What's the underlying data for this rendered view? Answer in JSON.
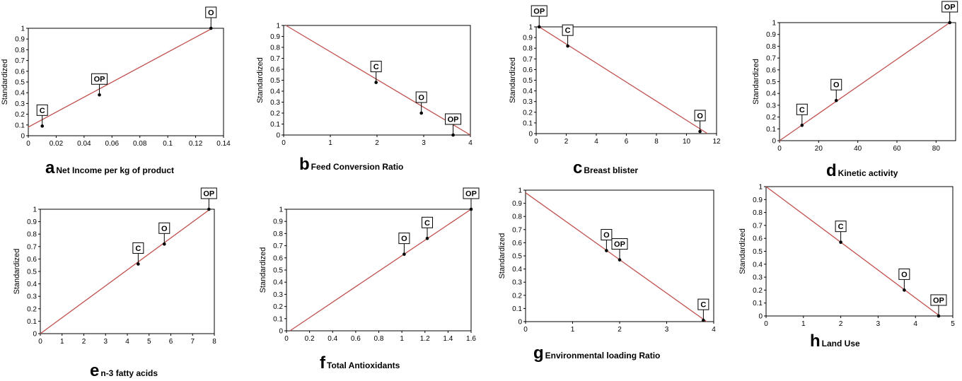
{
  "colors": {
    "line": "#c0504d",
    "frame": "#000000",
    "marker": "#000000",
    "box": "#ffffff"
  },
  "chart_data": [
    {
      "id": "a",
      "type": "line",
      "letter": "a",
      "xlabel": "Net Income per kg of product",
      "ylabel": "Standardized",
      "xlim": [
        0,
        0.14
      ],
      "ylim": [
        0,
        1
      ],
      "xticks": [
        "0",
        "0.02",
        "0.04",
        "0.06",
        "0.08",
        "0.1",
        "0.12",
        "0.14"
      ],
      "yticks": [
        "0",
        "0.1",
        "0.2",
        "0.3",
        "0.4",
        "0.5",
        "0.6",
        "0.7",
        "0.8",
        "0.9",
        "1"
      ],
      "series": [
        {
          "x": [
            0,
            0.132
          ],
          "y": [
            0.08,
            1
          ]
        }
      ],
      "points": [
        {
          "label": "C",
          "x": 0.01,
          "y": 0.09
        },
        {
          "label": "OP",
          "x": 0.051,
          "y": 0.38
        },
        {
          "label": "O",
          "x": 0.131,
          "y": 1.0
        }
      ]
    },
    {
      "id": "b",
      "type": "line",
      "letter": "b",
      "xlabel": "Feed Conversion Ratio",
      "ylabel": "Standardized",
      "xlim": [
        0,
        4
      ],
      "ylim": [
        0,
        1
      ],
      "xticks": [
        "0",
        "1",
        "2",
        "3",
        "4"
      ],
      "yticks": [
        "0",
        "0.1",
        "0.2",
        "0.3",
        "0.4",
        "0.5",
        "0.6",
        "0.7",
        "0.8",
        "0.9",
        "1"
      ],
      "series": [
        {
          "x": [
            0.05,
            4
          ],
          "y": [
            1,
            0
          ]
        }
      ],
      "points": [
        {
          "label": "C",
          "x": 1.98,
          "y": 0.48
        },
        {
          "label": "O",
          "x": 2.95,
          "y": 0.2
        },
        {
          "label": "OP",
          "x": 3.63,
          "y": 0.0
        }
      ]
    },
    {
      "id": "c",
      "type": "line",
      "letter": "c",
      "xlabel": "Breast blister",
      "ylabel": "Standardized",
      "xlim": [
        0,
        12
      ],
      "ylim": [
        0,
        1
      ],
      "xticks": [
        "0",
        "2",
        "4",
        "6",
        "8",
        "10",
        "12"
      ],
      "yticks": [
        "0",
        "0.1",
        "0.2",
        "0.3",
        "0.4",
        "0.5",
        "0.6",
        "0.7",
        "0.8",
        "0.9",
        "1"
      ],
      "series": [
        {
          "x": [
            0.2,
            11.4
          ],
          "y": [
            1,
            0
          ]
        }
      ],
      "points": [
        {
          "label": "OP",
          "x": 0.2,
          "y": 1.0
        },
        {
          "label": "C",
          "x": 2.1,
          "y": 0.82
        },
        {
          "label": "O",
          "x": 10.9,
          "y": 0.02
        }
      ]
    },
    {
      "id": "d",
      "type": "line",
      "letter": "d",
      "xlabel": "Kinetic activity",
      "ylabel": "Standardized",
      "xlim": [
        0,
        90
      ],
      "ylim": [
        0,
        1
      ],
      "xticks": [
        "0",
        "20",
        "40",
        "60",
        "80"
      ],
      "yticks": [
        "0",
        "0.1",
        "0.2",
        "0.3",
        "0.4",
        "0.5",
        "0.6",
        "0.7",
        "0.8",
        "0.9",
        "1"
      ],
      "series": [
        {
          "x": [
            0,
            87
          ],
          "y": [
            0,
            1
          ]
        }
      ],
      "points": [
        {
          "label": "C",
          "x": 11.5,
          "y": 0.13
        },
        {
          "label": "O",
          "x": 29,
          "y": 0.34
        },
        {
          "label": "OP",
          "x": 87,
          "y": 1.0
        }
      ]
    },
    {
      "id": "e",
      "type": "line",
      "letter": "e",
      "xlabel": "n-3 fatty acids",
      "ylabel": "Standardized",
      "xlim": [
        0,
        8
      ],
      "ylim": [
        0,
        1
      ],
      "xticks": [
        "0",
        "1",
        "2",
        "3",
        "4",
        "5",
        "6",
        "7",
        "8"
      ],
      "yticks": [
        "0",
        "0.1",
        "0.2",
        "0.3",
        "0.4",
        "0.5",
        "0.6",
        "0.7",
        "0.8",
        "0.9",
        "1"
      ],
      "series": [
        {
          "x": [
            0,
            7.8
          ],
          "y": [
            0,
            1
          ]
        }
      ],
      "points": [
        {
          "label": "C",
          "x": 4.5,
          "y": 0.56
        },
        {
          "label": "O",
          "x": 5.7,
          "y": 0.72
        },
        {
          "label": "OP",
          "x": 7.75,
          "y": 1.0
        }
      ]
    },
    {
      "id": "f",
      "type": "line",
      "letter": "f",
      "xlabel": "Total Antioxidants",
      "ylabel": "Standardized",
      "xlim": [
        0,
        1.6
      ],
      "ylim": [
        0,
        1
      ],
      "xticks": [
        "0",
        "0.2",
        "0.4",
        "0.6",
        "0.8",
        "1",
        "1.2",
        "1.4",
        "1.6"
      ],
      "yticks": [
        "0",
        "0.1",
        "0.2",
        "0.3",
        "0.4",
        "0.5",
        "0.6",
        "0.7",
        "0.8",
        "0.9",
        "1"
      ],
      "series": [
        {
          "x": [
            0.03,
            1.6
          ],
          "y": [
            0,
            1
          ]
        }
      ],
      "points": [
        {
          "label": "O",
          "x": 1.02,
          "y": 0.63
        },
        {
          "label": "C",
          "x": 1.22,
          "y": 0.76
        },
        {
          "label": "OP",
          "x": 1.6,
          "y": 1.0
        }
      ]
    },
    {
      "id": "g",
      "type": "line",
      "letter": "g",
      "xlabel": "Environmental loading Ratio",
      "ylabel": "Standardized",
      "xlim": [
        0,
        4
      ],
      "ylim": [
        0,
        1
      ],
      "xticks": [
        "0",
        "1",
        "2",
        "3",
        "4"
      ],
      "yticks": [
        "0",
        "0.1",
        "0.2",
        "0.3",
        "0.4",
        "0.5",
        "0.6",
        "0.7",
        "0.8",
        "0.9",
        "1"
      ],
      "series": [
        {
          "x": [
            0,
            3.85
          ],
          "y": [
            0.98,
            0
          ]
        }
      ],
      "points": [
        {
          "label": "O",
          "x": 1.72,
          "y": 0.54
        },
        {
          "label": "OP",
          "x": 2.0,
          "y": 0.47
        },
        {
          "label": "C",
          "x": 3.78,
          "y": 0.01
        }
      ]
    },
    {
      "id": "h",
      "type": "line",
      "letter": "h",
      "xlabel": "Land Use",
      "ylabel": "Standardized",
      "xlim": [
        0,
        5
      ],
      "ylim": [
        0,
        1
      ],
      "xticks": [
        "0",
        "1",
        "2",
        "3",
        "4",
        "5"
      ],
      "yticks": [
        "0",
        "0.1",
        "0.2",
        "0.3",
        "0.4",
        "0.5",
        "0.6",
        "0.7",
        "0.8",
        "0.9",
        "1"
      ],
      "series": [
        {
          "x": [
            0,
            4.65
          ],
          "y": [
            1,
            0
          ]
        }
      ],
      "points": [
        {
          "label": "C",
          "x": 2.0,
          "y": 0.57
        },
        {
          "label": "O",
          "x": 3.7,
          "y": 0.2
        },
        {
          "label": "OP",
          "x": 4.62,
          "y": 0.0
        }
      ]
    }
  ]
}
